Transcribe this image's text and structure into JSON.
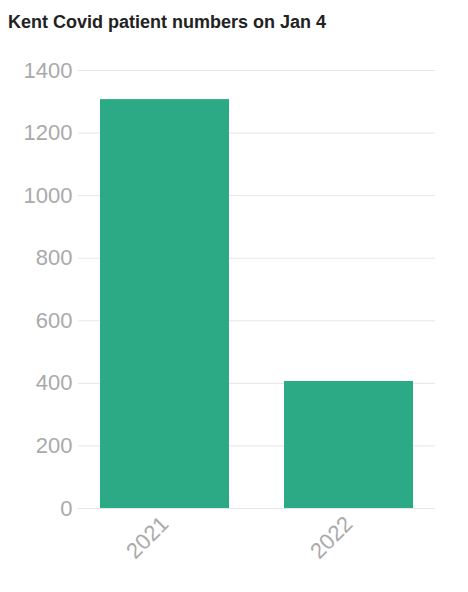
{
  "chart_data": {
    "type": "bar",
    "title": "Kent Covid patient numbers on Jan 4",
    "categories": [
      "2021",
      "2022"
    ],
    "values": [
      1307,
      406
    ],
    "color": "#2baa85",
    "ylim": [
      0,
      1400
    ],
    "yticks": [
      0,
      200,
      400,
      600,
      800,
      1000,
      1200,
      1400
    ],
    "grid": true
  }
}
